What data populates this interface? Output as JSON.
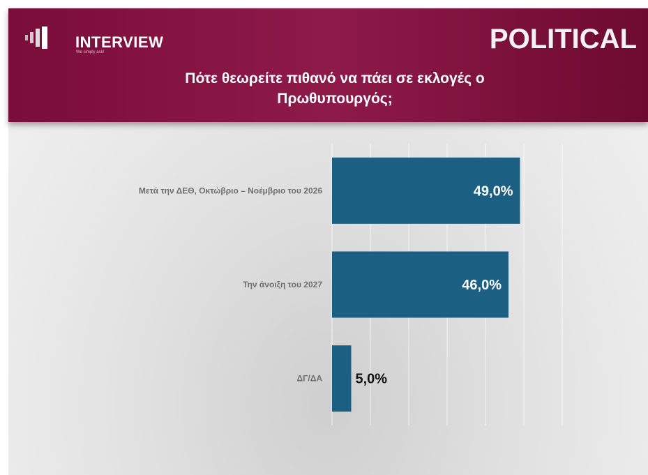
{
  "header": {
    "logo": "INTERVIEW",
    "tagline": "We simply ask!",
    "brand": "POLITICAL"
  },
  "chart_data": {
    "type": "bar",
    "orientation": "horizontal",
    "title": "Πότε θεωρείτε πιθανό να πάει σε εκλογές ο Πρωθυπουργός;",
    "categories": [
      "Μετά την ΔΕΘ, Οκτώβριο – Νοέμβριο του 2026",
      "Την άνοιξη του 2027",
      "ΔΓ/ΔΑ"
    ],
    "values": [
      49.0,
      46.0,
      5.0
    ],
    "value_labels": [
      "49,0%",
      "46,0%",
      "5,0%"
    ],
    "color": "#1b5f82",
    "xlim": [
      0,
      60
    ],
    "xticks": [
      0,
      10,
      20,
      30,
      40,
      50,
      60
    ],
    "grid": true
  }
}
